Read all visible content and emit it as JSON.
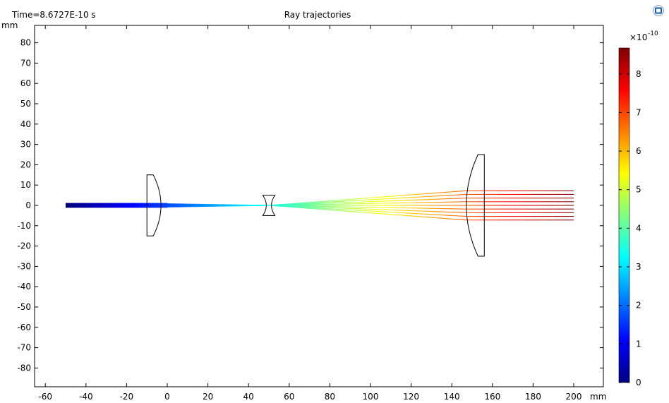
{
  "time_label": "Time=8.6727E-10 s",
  "title": "Ray trajectories",
  "corner_icon": "comsol-logo-icon",
  "chart_data": {
    "type": "line",
    "xlabel": "mm",
    "ylabel": "mm",
    "xlim": [
      -65,
      215
    ],
    "ylim": [
      -89,
      89
    ],
    "x_ticks": [
      -60,
      -40,
      -20,
      0,
      20,
      40,
      60,
      80,
      100,
      120,
      140,
      160,
      180,
      200
    ],
    "y_ticks": [
      80,
      70,
      60,
      50,
      40,
      30,
      20,
      10,
      0,
      -10,
      -20,
      -30,
      -40,
      -50,
      -60,
      -70,
      -80
    ],
    "grid": false,
    "lenses": [
      {
        "name": "plano-convex",
        "x_plane": -10,
        "apex_x": 0,
        "half_aperture": 15
      },
      {
        "name": "biconcave",
        "x_center": 50,
        "edge_x": [
          47,
          53
        ],
        "center_x": [
          49.5,
          50.5
        ],
        "half_aperture": 5
      },
      {
        "name": "convex-plano",
        "x_plane": 156,
        "apex_x": 147,
        "half_aperture": 25
      }
    ],
    "rays": {
      "start_x": -50,
      "end_x": 200,
      "input_half_width": 0.8,
      "focus_x": 50,
      "collimated_x": 147,
      "output_y": [
        -7.2,
        -5.4,
        -3.6,
        -1.8,
        0,
        1.8,
        3.6,
        5.4,
        7.2
      ]
    },
    "colorbar": {
      "exponent_label": "×10",
      "exponent": "-10",
      "ticks": [
        0,
        1,
        2,
        3,
        4,
        5,
        6,
        7,
        8
      ],
      "max": 8.6727,
      "colors": [
        "#00007f",
        "#0000ff",
        "#007fff",
        "#00ffff",
        "#7fff7f",
        "#ffff00",
        "#ff7f00",
        "#ff0000",
        "#7f0000"
      ]
    }
  }
}
